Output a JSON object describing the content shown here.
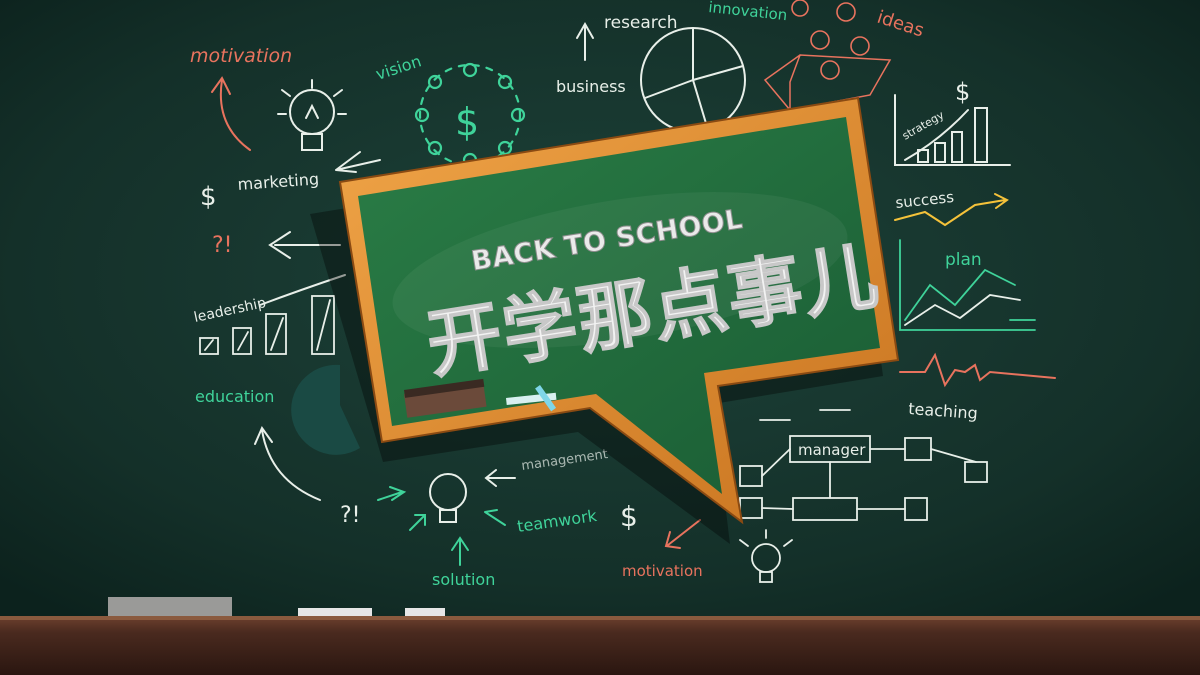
{
  "headline": {
    "english": "BACK TO SCHOOL",
    "chinese": "开学那点事儿"
  },
  "doodle_words": {
    "motivation_top": "motivation",
    "vision": "vision",
    "research": "research",
    "innovation": "innovation",
    "ideas": "ideas",
    "business": "business",
    "marketing": "marketing",
    "strategy": "strategy",
    "success": "success",
    "plan": "plan",
    "leadership": "leadership",
    "education": "education",
    "teaching": "teaching",
    "manager": "manager",
    "management": "management",
    "teamwork": "teamwork",
    "solution": "solution",
    "motivation_bottom": "motivation"
  },
  "symbols": {
    "dollar": "$",
    "question_exclaim": "?!"
  },
  "colors": {
    "chalkboard": "#17362f",
    "chalk_white": "#e8efe9",
    "chalk_red": "#e8735e",
    "chalk_green": "#3fd39a",
    "frame_wood": "#d98a2e",
    "inner_board": "#1f6b3e",
    "floor_wood": "#4a2b20"
  },
  "icons": [
    "lightbulb-icon",
    "dollar-icon",
    "pie-chart-icon",
    "bar-chart-icon",
    "line-chart-icon",
    "people-circle-icon",
    "flowchart-icon",
    "arrow-icon"
  ]
}
